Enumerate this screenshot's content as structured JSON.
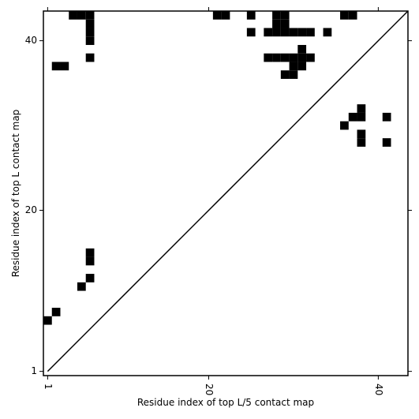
{
  "chart_data": {
    "type": "contact_map",
    "xlabel": "Residue index of top L/5 contact map",
    "ylabel": "Residue index of top L contact map",
    "xlim": [
      0.5,
      43.5
    ],
    "ylim": [
      0.5,
      43.5
    ],
    "xticks": [
      1,
      20,
      40
    ],
    "yticks": [
      1,
      20,
      40
    ],
    "color": "#000000",
    "diagonal": true,
    "cells": [
      [
        4,
        43
      ],
      [
        5,
        43
      ],
      [
        6,
        43
      ],
      [
        6,
        42
      ],
      [
        6,
        41
      ],
      [
        6,
        40
      ],
      [
        6,
        38
      ],
      [
        2,
        37
      ],
      [
        3,
        37
      ],
      [
        21,
        43
      ],
      [
        22,
        43
      ],
      [
        25,
        43
      ],
      [
        25,
        41
      ],
      [
        28,
        43
      ],
      [
        29,
        43
      ],
      [
        28,
        42
      ],
      [
        29,
        42
      ],
      [
        28,
        41
      ],
      [
        29,
        41
      ],
      [
        27,
        41
      ],
      [
        30,
        41
      ],
      [
        31,
        41
      ],
      [
        32,
        41
      ],
      [
        34,
        41
      ],
      [
        36,
        43
      ],
      [
        37,
        43
      ],
      [
        31,
        39
      ],
      [
        27,
        38
      ],
      [
        28,
        38
      ],
      [
        29,
        38
      ],
      [
        30,
        38
      ],
      [
        31,
        38
      ],
      [
        32,
        38
      ],
      [
        30,
        37
      ],
      [
        31,
        37
      ],
      [
        29,
        36
      ],
      [
        30,
        36
      ],
      [
        38,
        32
      ],
      [
        37,
        31
      ],
      [
        38,
        31
      ],
      [
        41,
        31
      ],
      [
        36,
        30
      ],
      [
        38,
        29
      ],
      [
        38,
        28
      ],
      [
        41,
        28
      ],
      [
        6,
        15
      ],
      [
        6,
        14
      ],
      [
        6,
        12
      ],
      [
        5,
        11
      ],
      [
        2,
        8
      ],
      [
        1,
        7
      ]
    ]
  }
}
